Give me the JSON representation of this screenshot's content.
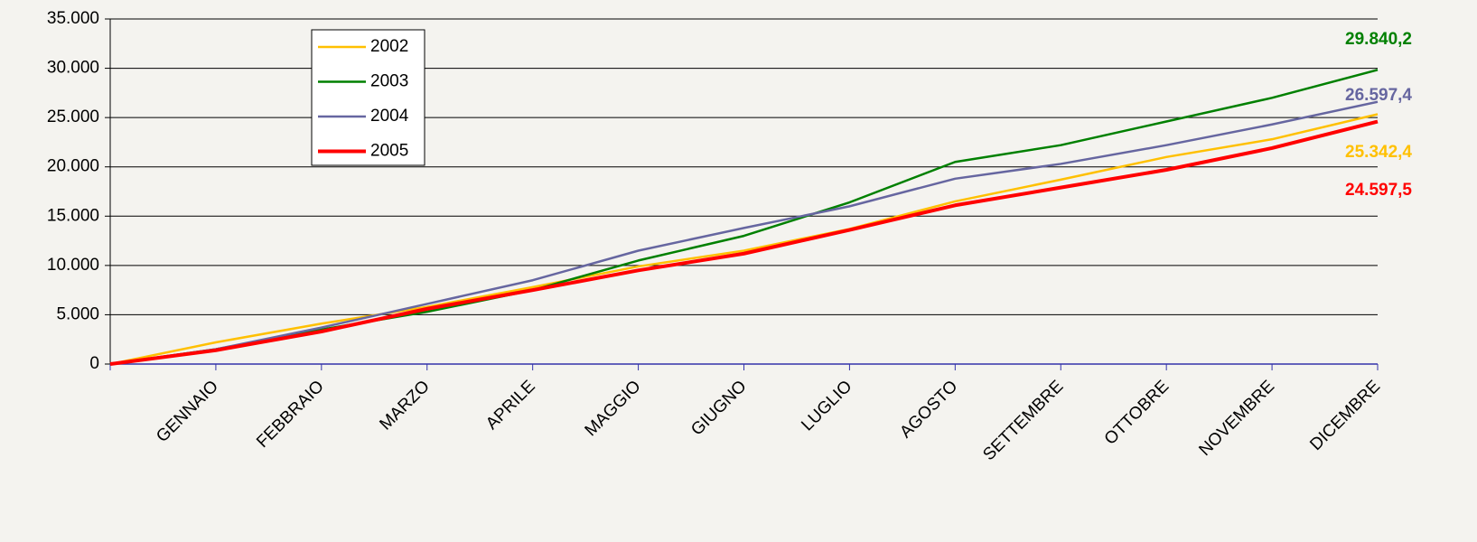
{
  "chart_data": {
    "type": "line",
    "categories": [
      null,
      "GENNAIO",
      "FEBBRAIO",
      "MARZO",
      "APRILE",
      "MAGGIO",
      "GIUGNO",
      "LUGLIO",
      "AGOSTO",
      "SETTEMBRE",
      "OTTOBRE",
      "NOVEMBRE",
      "DICEMBRE"
    ],
    "series": [
      {
        "name": "2002",
        "color": "#ffc000",
        "values": [
          0,
          2200,
          4100,
          5800,
          7800,
          9900,
          11500,
          13700,
          16500,
          18700,
          21000,
          22800,
          25342.4
        ],
        "value_labels": [
          null,
          null,
          null,
          null,
          null,
          null,
          null,
          null,
          null,
          null,
          null,
          null,
          "25.342,4"
        ]
      },
      {
        "name": "2003",
        "color": "#008000",
        "values": [
          0,
          1500,
          3500,
          5300,
          7500,
          10500,
          13000,
          16400,
          20500,
          22200,
          24600,
          27000,
          29840.2
        ],
        "value_labels": [
          null,
          null,
          null,
          null,
          null,
          null,
          null,
          null,
          null,
          null,
          null,
          null,
          "29.840,2"
        ]
      },
      {
        "name": "2004",
        "color": "#6666a0",
        "values": [
          0,
          1500,
          3700,
          6100,
          8500,
          11500,
          13800,
          16000,
          18800,
          20300,
          22200,
          24300,
          26597.4
        ],
        "value_labels": [
          null,
          null,
          null,
          null,
          null,
          null,
          null,
          null,
          null,
          null,
          null,
          null,
          "26.597,4"
        ]
      },
      {
        "name": "2005",
        "color": "#ff0000",
        "values": [
          0,
          1400,
          3300,
          5600,
          7500,
          9500,
          11200,
          13600,
          16100,
          17900,
          19700,
          21900,
          24597.5
        ],
        "value_labels": [
          null,
          null,
          null,
          null,
          null,
          null,
          null,
          null,
          null,
          null,
          null,
          null,
          "24.597,5"
        ]
      }
    ],
    "ylim": [
      0,
      35000
    ],
    "yticks": [
      0,
      {
        "value": 5000,
        "label": "5.000"
      },
      {
        "value": 10000,
        "label": "10.000"
      },
      {
        "value": 15000,
        "label": "15.000"
      },
      {
        "value": 20000,
        "label": "20.000"
      },
      {
        "value": 25000,
        "label": "25.000"
      },
      {
        "value": 30000,
        "label": "30.000"
      },
      {
        "value": 35000,
        "label": "35.000"
      }
    ],
    "grid": true,
    "legend": "upper left"
  }
}
